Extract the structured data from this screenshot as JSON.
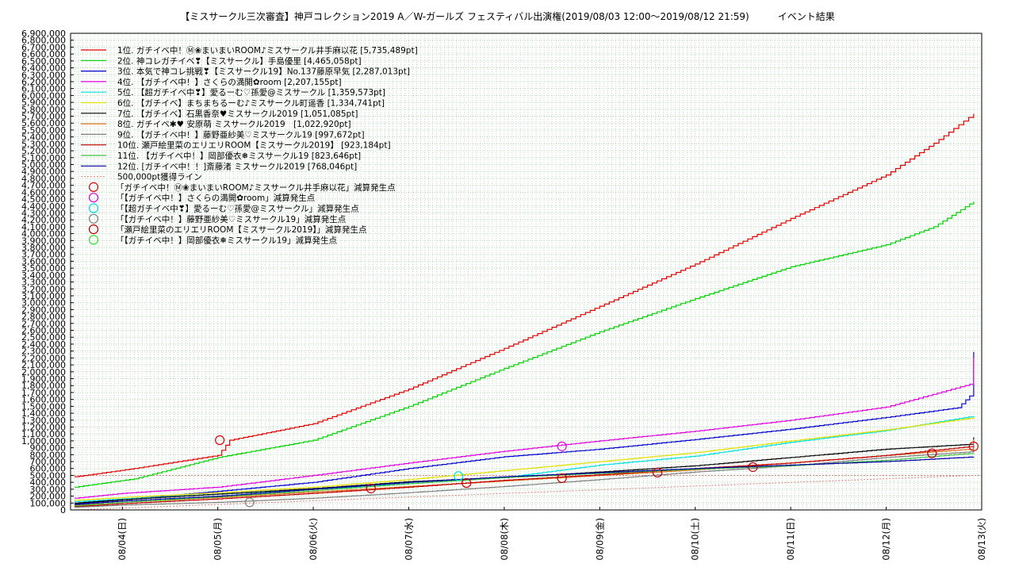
{
  "chart_data": {
    "type": "line",
    "title": "【ミスサークル三次審査】神戸コレクション2019 A／W-ガールズ フェスティバル出演権(2019/08/03 12:00〜2019/08/12 21:59)　　　イベント結果",
    "xlabel": "",
    "ylabel": "",
    "ylim": [
      0,
      6900000
    ],
    "yticks": [
      0,
      100000,
      200000,
      300000,
      400000,
      500000,
      600000,
      700000,
      800000,
      900000,
      1000000,
      1100000,
      1200000,
      1300000,
      1400000,
      1500000,
      1600000,
      1700000,
      1800000,
      1900000,
      2000000,
      2100000,
      2200000,
      2300000,
      2400000,
      2500000,
      2600000,
      2700000,
      2800000,
      2900000,
      3000000,
      3100000,
      3200000,
      3300000,
      3400000,
      3500000,
      3600000,
      3700000,
      3800000,
      3900000,
      4000000,
      4100000,
      4200000,
      4300000,
      4400000,
      4500000,
      4600000,
      4700000,
      4800000,
      4900000,
      5000000,
      5100000,
      5200000,
      5300000,
      5400000,
      5500000,
      5600000,
      5700000,
      5800000,
      5900000,
      6000000,
      6100000,
      6200000,
      6300000,
      6400000,
      6500000,
      6600000,
      6700000,
      6800000,
      6900000
    ],
    "ytick_labels": [
      "0",
      "100,000",
      "200,000",
      "300,000",
      "400,000",
      "500,000",
      "600,000",
      "700,000",
      "800,000",
      "900,000",
      "1,000,000",
      "1,100,000",
      "1,200,000",
      "1,300,000",
      "1,400,000",
      "1,500,000",
      "1,600,000",
      "1,700,000",
      "1,800,000",
      "1,900,000",
      "2,000,000",
      "2,100,000",
      "2,200,000",
      "2,300,000",
      "2,400,000",
      "2,500,000",
      "2,600,000",
      "2,700,000",
      "2,800,000",
      "2,900,000",
      "3,000,000",
      "3,100,000",
      "3,200,000",
      "3,300,000",
      "3,400,000",
      "3,500,000",
      "3,600,000",
      "3,700,000",
      "3,800,000",
      "3,900,000",
      "4,000,000",
      "4,100,000",
      "4,200,000",
      "4,300,000",
      "4,400,000",
      "4,500,000",
      "4,600,000",
      "4,700,000",
      "4,800,000",
      "4,900,000",
      "5,000,000",
      "5,100,000",
      "5,200,000",
      "5,300,000",
      "5,400,000",
      "5,500,000",
      "5,600,000",
      "5,700,000",
      "5,800,000",
      "5,900,000",
      "6,000,000",
      "6,100,000",
      "6,200,000",
      "6,300,000",
      "6,400,000",
      "6,500,000",
      "6,600,000",
      "6,700,000",
      "6,800,000",
      "6,900,000"
    ],
    "xlim": [
      "2019-08-03T11:00",
      "2019-08-13T00:00"
    ],
    "xticks": [
      "2019-08-04T00:00",
      "2019-08-05T00:00",
      "2019-08-06T00:00",
      "2019-08-07T00:00",
      "2019-08-08T00:00",
      "2019-08-09T00:00",
      "2019-08-10T00:00",
      "2019-08-11T00:00",
      "2019-08-12T00:00",
      "2019-08-13T00:00"
    ],
    "xtick_labels": [
      "08/04(日)",
      "08/05(月)",
      "08/06(火)",
      "08/07(水)",
      "08/08(木)",
      "08/09(金)",
      "08/10(土)",
      "08/11(日)",
      "08/12(月)",
      "08/13(火)"
    ],
    "grid": true,
    "legend_position": "top-left",
    "series": [
      {
        "name": "1位. ガチイベ中！Ⓜ❀まいまいROOM♪ミスサークル井手麻以花 [5,735,489pt]",
        "color": "#e00000",
        "x": [
          "2019-08-03T12:00",
          "2019-08-04T03:00",
          "2019-08-04T14:00",
          "2019-08-05T00:00",
          "2019-08-05T03:00",
          "2019-08-06T00:00",
          "2019-08-07T00:00",
          "2019-08-08T00:00",
          "2019-08-09T00:00",
          "2019-08-10T00:00",
          "2019-08-11T00:00",
          "2019-08-12T00:00",
          "2019-08-12T12:00",
          "2019-08-12T21:59"
        ],
        "y": [
          480000,
          600000,
          700000,
          790000,
          1010000,
          1250000,
          1750000,
          2340000,
          2950000,
          3560000,
          4220000,
          4850000,
          5310000,
          5735489
        ]
      },
      {
        "name": "2位. 神コレガチイベ❣【ミスサークル】手島優里 [4,465,058pt]",
        "color": "#00d000",
        "x": [
          "2019-08-03T12:00",
          "2019-08-04T03:00",
          "2019-08-05T00:00",
          "2019-08-06T00:00",
          "2019-08-07T00:00",
          "2019-08-08T00:00",
          "2019-08-09T00:00",
          "2019-08-10T00:00",
          "2019-08-11T00:00",
          "2019-08-12T00:00",
          "2019-08-12T12:00",
          "2019-08-12T21:00",
          "2019-08-12T21:59"
        ],
        "y": [
          330000,
          450000,
          760000,
          1010000,
          1500000,
          2050000,
          2580000,
          3060000,
          3520000,
          3840000,
          4100000,
          4430000,
          4465058
        ]
      },
      {
        "name": "3位. 本気で神コレ挑戦❣【ミスサークル19】No.137藤原早気 [2,287,013pt]",
        "color": "#0000d0",
        "x": [
          "2019-08-03T12:00",
          "2019-08-04T00:00",
          "2019-08-05T00:00",
          "2019-08-06T00:00",
          "2019-08-07T00:00",
          "2019-08-08T00:00",
          "2019-08-09T00:00",
          "2019-08-10T00:00",
          "2019-08-11T00:00",
          "2019-08-12T00:00",
          "2019-08-12T18:00",
          "2019-08-12T21:00",
          "2019-08-12T21:59"
        ],
        "y": [
          90000,
          150000,
          270000,
          400000,
          600000,
          770000,
          880000,
          1020000,
          1170000,
          1340000,
          1480000,
          1650000,
          2287013
        ]
      },
      {
        "name": "4位. 【ガチイベ中！】さくらの満開✿room [2,207,155pt]",
        "color": "#e000e0",
        "x": [
          "2019-08-03T12:00",
          "2019-08-04T00:00",
          "2019-08-05T00:00",
          "2019-08-06T00:00",
          "2019-08-07T00:00",
          "2019-08-08T00:00",
          "2019-08-09T00:00",
          "2019-08-10T00:00",
          "2019-08-11T00:00",
          "2019-08-12T00:00",
          "2019-08-12T21:00",
          "2019-08-12T21:59"
        ],
        "y": [
          170000,
          240000,
          330000,
          500000,
          680000,
          850000,
          1000000,
          1140000,
          1300000,
          1490000,
          1820000,
          2207155
        ]
      },
      {
        "name": "5位. 【超ガチイベ中❣】愛るーむ♡孫愛@ミスサークル [1,359,573pt]",
        "color": "#00e0e0",
        "x": [
          "2019-08-03T12:00",
          "2019-08-04T00:00",
          "2019-08-05T00:00",
          "2019-08-06T00:00",
          "2019-08-07T00:00",
          "2019-08-08T00:00",
          "2019-08-09T00:00",
          "2019-08-10T00:00",
          "2019-08-11T00:00",
          "2019-08-12T00:00",
          "2019-08-12T21:59"
        ],
        "y": [
          120000,
          160000,
          230000,
          300000,
          380000,
          470000,
          650000,
          780000,
          980000,
          1150000,
          1359573
        ]
      },
      {
        "name": "6位. 【ガチイベ】まちまちるーむ♪ミスサークル町遥香 [1,334,741pt]",
        "color": "#e0e000",
        "x": [
          "2019-08-03T12:00",
          "2019-08-04T00:00",
          "2019-08-05T00:00",
          "2019-08-06T00:00",
          "2019-08-07T00:00",
          "2019-08-08T00:00",
          "2019-08-09T00:00",
          "2019-08-10T00:00",
          "2019-08-11T00:00",
          "2019-08-12T00:00",
          "2019-08-12T21:59"
        ],
        "y": [
          140000,
          180000,
          250000,
          330000,
          440000,
          570000,
          700000,
          830000,
          1000000,
          1160000,
          1334741
        ]
      },
      {
        "name": "7位. 【ガチイベ】石黒香奈♥ミスサークル2019 [1,051,085pt]",
        "color": "#000000",
        "x": [
          "2019-08-03T12:00",
          "2019-08-04T00:00",
          "2019-08-05T00:00",
          "2019-08-06T00:00",
          "2019-08-07T00:00",
          "2019-08-08T00:00",
          "2019-08-09T00:00",
          "2019-08-10T00:00",
          "2019-08-11T00:00",
          "2019-08-12T00:00",
          "2019-08-12T21:00",
          "2019-08-12T21:59"
        ],
        "y": [
          100000,
          150000,
          230000,
          310000,
          410000,
          470000,
          550000,
          640000,
          760000,
          880000,
          950000,
          1051085
        ]
      },
      {
        "name": "8位. ガチイベ✱♥ 安原萌 ミスサークル2019　[1,022,920pt]",
        "color": "#e07020",
        "x": [
          "2019-08-03T12:00",
          "2019-08-04T00:00",
          "2019-08-05T00:00",
          "2019-08-06T00:00",
          "2019-08-07T00:00",
          "2019-08-08T00:00",
          "2019-08-09T00:00",
          "2019-08-10T00:00",
          "2019-08-11T00:00",
          "2019-08-12T00:00",
          "2019-08-12T21:00",
          "2019-08-12T21:59"
        ],
        "y": [
          70000,
          110000,
          180000,
          260000,
          340000,
          420000,
          500000,
          580000,
          680000,
          790000,
          880000,
          1022920
        ]
      },
      {
        "name": "9位. 【ガチイベ中！】藤野亜紗美♡ミスサークル19 [997,672pt]",
        "color": "#808080",
        "x": [
          "2019-08-03T12:00",
          "2019-08-04T00:00",
          "2019-08-05T00:00",
          "2019-08-06T00:00",
          "2019-08-07T00:00",
          "2019-08-08T00:00",
          "2019-08-09T00:00",
          "2019-08-10T00:00",
          "2019-08-11T00:00",
          "2019-08-12T00:00",
          "2019-08-12T21:00",
          "2019-08-12T21:59"
        ],
        "y": [
          40000,
          70000,
          110000,
          170000,
          250000,
          340000,
          440000,
          550000,
          640000,
          760000,
          840000,
          997672
        ]
      },
      {
        "name": "10位. 瀬戸絵里菜のエリエリROOM【ミスサークル2019】 [923,184pt]",
        "color": "#c00000",
        "x": [
          "2019-08-03T12:00",
          "2019-08-04T00:00",
          "2019-08-05T00:00",
          "2019-08-06T00:00",
          "2019-08-07T00:00",
          "2019-08-08T00:00",
          "2019-08-09T00:00",
          "2019-08-10T00:00",
          "2019-08-11T00:00",
          "2019-08-12T00:00",
          "2019-08-12T21:59"
        ],
        "y": [
          50000,
          90000,
          160000,
          240000,
          330000,
          430000,
          510000,
          600000,
          680000,
          790000,
          923184
        ]
      },
      {
        "name": "11位. 【ガチイベ中！】岡部優衣❅ミスサークル19 [823,646pt]",
        "color": "#40c040",
        "x": [
          "2019-08-03T12:00",
          "2019-08-04T00:00",
          "2019-08-05T00:00",
          "2019-08-06T00:00",
          "2019-08-07T00:00",
          "2019-08-08T00:00",
          "2019-08-09T00:00",
          "2019-08-10T00:00",
          "2019-08-11T00:00",
          "2019-08-12T00:00",
          "2019-08-12T21:59"
        ],
        "y": [
          60000,
          110000,
          190000,
          280000,
          380000,
          470000,
          530000,
          590000,
          640000,
          720000,
          823646
        ]
      },
      {
        "name": "12位. [ガチイベ中！！]斎藤渚 ミスサークル2019 [768,046pt]",
        "color": "#0000a0",
        "x": [
          "2019-08-03T12:00",
          "2019-08-04T00:00",
          "2019-08-05T00:00",
          "2019-08-06T00:00",
          "2019-08-07T00:00",
          "2019-08-08T00:00",
          "2019-08-09T00:00",
          "2019-08-10T00:00",
          "2019-08-11T00:00",
          "2019-08-12T00:00",
          "2019-08-12T21:59"
        ],
        "y": [
          80000,
          130000,
          200000,
          300000,
          400000,
          480000,
          540000,
          600000,
          650000,
          700000,
          768046
        ]
      }
    ],
    "reference_line": {
      "name": "500,000pt獲得ライン",
      "color": "#e08080",
      "x": [
        "2019-08-03T12:00",
        "2019-08-12T21:59"
      ],
      "y": [
        0,
        500000
      ]
    },
    "markers": [
      {
        "name": "「ガチイベ中！Ⓜ❀まいまいROOM♪ミスサークル井手麻以花」減算発生点",
        "color": "#e00000",
        "points": [
          {
            "x": "2019-08-05T00:30",
            "y": 1010000
          },
          {
            "x": "2019-08-12T21:59",
            "y": 920000
          }
        ]
      },
      {
        "name": "「【ガチイベ中！】さくらの満開✿room」減算発生点",
        "color": "#e000e0",
        "points": [
          {
            "x": "2019-08-08T14:30",
            "y": 920000
          }
        ]
      },
      {
        "name": "「【超ガチイベ中❣】愛るーむ♡孫愛@ミスサークル」減算発生点",
        "color": "#00e0e0",
        "points": [
          {
            "x": "2019-08-07T12:30",
            "y": 490000
          }
        ]
      },
      {
        "name": "「【ガチイベ中！】藤野亜紗美♡ミスサークル19」減算発生点",
        "color": "#808080",
        "points": [
          {
            "x": "2019-08-05T08:00",
            "y": 110000
          }
        ]
      },
      {
        "name": "「瀬戸絵里菜のエリエリROOM【ミスサークル2019】」減算発生点",
        "color": "#c00000",
        "points": [
          {
            "x": "2019-08-06T14:30",
            "y": 310000
          },
          {
            "x": "2019-08-07T14:30",
            "y": 390000
          },
          {
            "x": "2019-08-08T14:30",
            "y": 460000
          },
          {
            "x": "2019-08-09T14:30",
            "y": 540000
          },
          {
            "x": "2019-08-10T14:30",
            "y": 620000
          },
          {
            "x": "2019-08-12T11:30",
            "y": 820000
          }
        ]
      },
      {
        "name": "「【ガチイベ中！】岡部優衣❅ミスサークル19」減算発生点",
        "color": "#30e030",
        "points": []
      }
    ]
  }
}
